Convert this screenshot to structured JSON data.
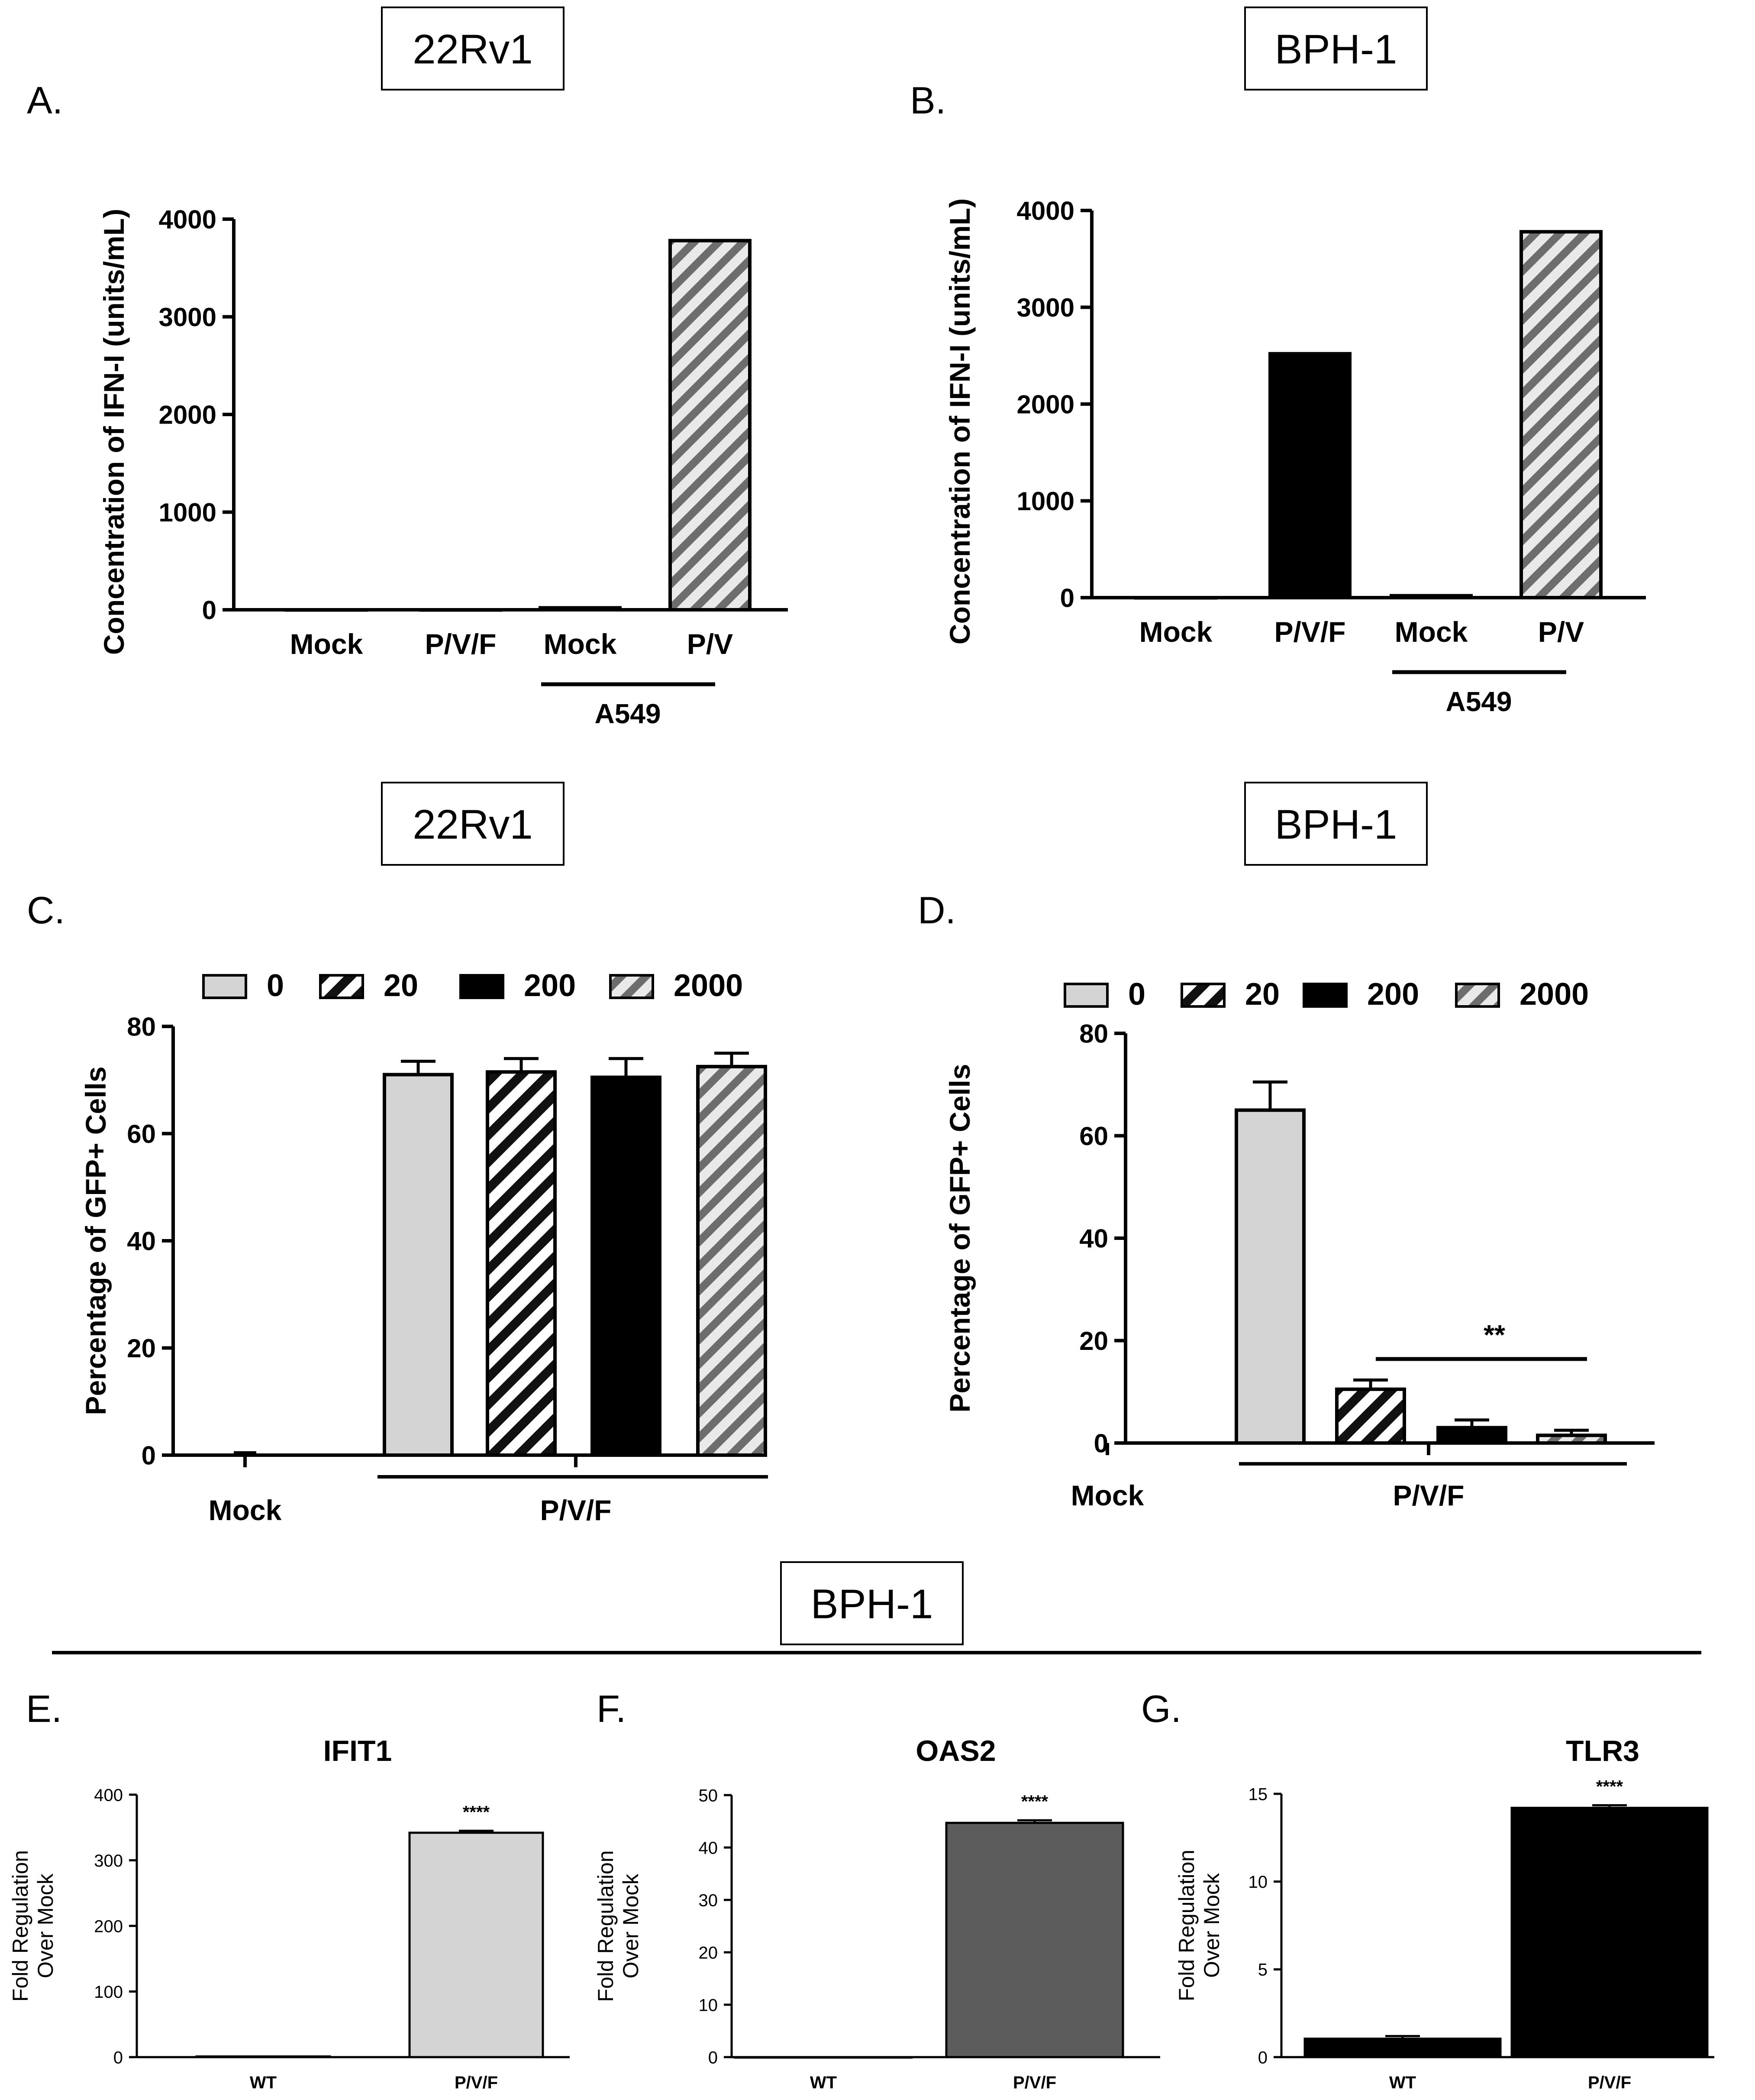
{
  "colors": {
    "light_gray": "#d4d4d4",
    "dark_gray": "#5c5c5c",
    "black": "#000000",
    "hatch_dark": "#2b2b2b",
    "hatch_gray": "#7a7a7a",
    "white": "#ffffff"
  },
  "chart_data": [
    {
      "id": "A",
      "panel_letter": "A.",
      "cell_line": "22Rv1",
      "type": "bar",
      "title": "",
      "ylabel": "Concentration of IFN-I (units/mL)",
      "ylim": [
        0,
        4000
      ],
      "yticks": [
        0,
        1000,
        2000,
        3000,
        4000
      ],
      "categories": [
        "Mock",
        "P/V/F",
        "Mock",
        "P/V"
      ],
      "values": [
        0,
        0,
        20,
        3780
      ],
      "fills": [
        "solid-black",
        "solid-black",
        "solid-black",
        "hatch-gray"
      ],
      "group_label": "A549",
      "group_span": [
        2,
        3
      ],
      "annotation": ""
    },
    {
      "id": "B",
      "panel_letter": "B.",
      "cell_line": "BPH-1",
      "type": "bar",
      "title": "",
      "ylabel": "Concentration of IFN-I (units/mL)",
      "ylim": [
        0,
        4000
      ],
      "yticks": [
        0,
        1000,
        2000,
        3000,
        4000
      ],
      "categories": [
        "Mock",
        "P/V/F",
        "Mock",
        "P/V"
      ],
      "values": [
        0,
        2520,
        20,
        3780
      ],
      "fills": [
        "solid-black",
        "solid-black",
        "solid-black",
        "hatch-gray"
      ],
      "group_label": "A549",
      "group_span": [
        2,
        3
      ],
      "annotation": ""
    },
    {
      "id": "C",
      "panel_letter": "C.",
      "cell_line": "22Rv1",
      "type": "bar",
      "title": "",
      "ylabel": "Percentage of GFP+ Cells",
      "ylim": [
        0,
        80
      ],
      "yticks": [
        0,
        20,
        40,
        60,
        80
      ],
      "legend": [
        "0",
        "20",
        "200",
        "2000"
      ],
      "legend_fills": [
        "light-gray",
        "hatch-dark",
        "solid-black",
        "hatch-gray"
      ],
      "groups": [
        "Mock",
        "P/V/F"
      ],
      "series": [
        {
          "name": "0",
          "values": [
            0,
            71
          ],
          "errors": [
            0.5,
            2.5
          ]
        },
        {
          "name": "20",
          "values": [
            0,
            71.5
          ],
          "errors": [
            0,
            2.5
          ]
        },
        {
          "name": "200",
          "values": [
            0,
            70.5
          ],
          "errors": [
            0,
            3.5
          ]
        },
        {
          "name": "2000",
          "values": [
            0,
            72.5
          ],
          "errors": [
            0,
            2.5
          ]
        }
      ],
      "annotation": ""
    },
    {
      "id": "D",
      "panel_letter": "D.",
      "cell_line": "BPH-1",
      "type": "bar",
      "title": "",
      "ylabel": "Percentage of GFP+ Cells",
      "ylim": [
        0,
        80
      ],
      "yticks": [
        0,
        20,
        40,
        60,
        80
      ],
      "legend": [
        "0",
        "20",
        "200",
        "2000"
      ],
      "legend_fills": [
        "light-gray",
        "hatch-dark",
        "solid-black",
        "hatch-gray"
      ],
      "groups": [
        "Mock",
        "P/V/F"
      ],
      "series": [
        {
          "name": "0",
          "values": [
            0,
            65
          ],
          "errors": [
            0,
            5.5
          ]
        },
        {
          "name": "20",
          "values": [
            0,
            10.5
          ],
          "errors": [
            0,
            1.8
          ]
        },
        {
          "name": "200",
          "values": [
            0,
            3
          ],
          "errors": [
            0,
            1.5
          ]
        },
        {
          "name": "2000",
          "values": [
            0,
            1.5
          ],
          "errors": [
            0,
            1
          ]
        }
      ],
      "annotation": "**"
    },
    {
      "id": "E",
      "panel_letter": "E.",
      "type": "bar",
      "title": "IFIT1",
      "ylabel": "Fold Regulation Over Mock",
      "ylim": [
        0,
        400
      ],
      "yticks": [
        0,
        100,
        200,
        300,
        400
      ],
      "categories": [
        "WT",
        "P/V/F"
      ],
      "values": [
        1,
        342
      ],
      "errors": [
        0,
        3
      ],
      "fill": "light-gray",
      "annotation": "****"
    },
    {
      "id": "F",
      "panel_letter": "F.",
      "type": "bar",
      "title": "OAS2",
      "ylabel": "Fold Regulation Over Mock",
      "ylim": [
        0,
        50
      ],
      "yticks": [
        0,
        10,
        20,
        30,
        40,
        50
      ],
      "categories": [
        "WT",
        "P/V/F"
      ],
      "values": [
        0,
        44.7
      ],
      "errors": [
        0,
        0.5
      ],
      "fill": "dark-gray",
      "annotation": "****"
    },
    {
      "id": "G",
      "panel_letter": "G.",
      "type": "bar",
      "title": "TLR3",
      "ylabel": "Fold Regulation Over Mock",
      "ylim": [
        0,
        15
      ],
      "yticks": [
        0,
        5,
        10,
        15
      ],
      "categories": [
        "WT",
        "P/V/F"
      ],
      "values": [
        1.05,
        14.2
      ],
      "errors": [
        0.15,
        0.15
      ],
      "fill": "solid-black",
      "annotation": "****"
    }
  ],
  "section_label": "BPH-1"
}
